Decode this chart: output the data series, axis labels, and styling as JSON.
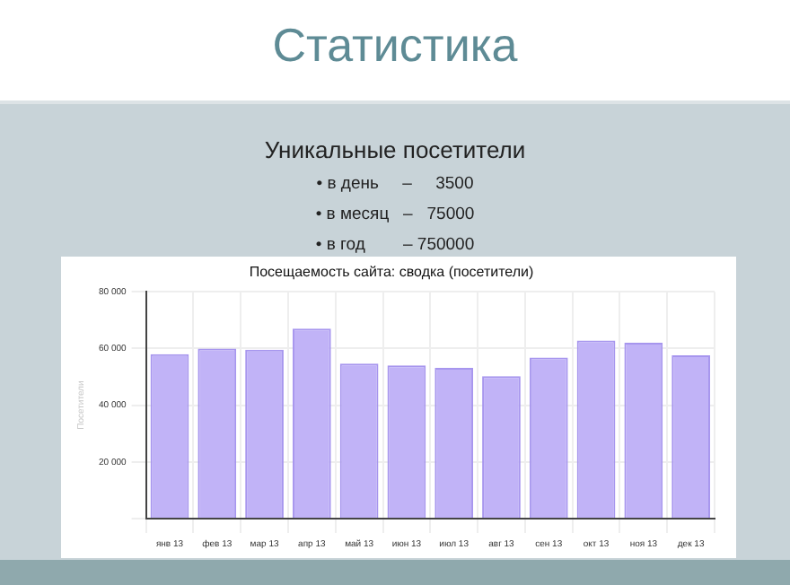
{
  "chart_data": {
    "type": "bar",
    "title": "Посещаемость сайта: сводка (посетители)",
    "ylabel": "Посетители",
    "annotations": [
      "Статистика",
      "Уникальные посетители",
      "• в день     –     3500",
      "• в месяц   –   75000",
      "• в год        – 750000"
    ],
    "categories": [
      "янв 13",
      "фев 13",
      "мар 13",
      "апр 13",
      "май 13",
      "июн 13",
      "июл 13",
      "авг 13",
      "сен 13",
      "окт 13",
      "ноя 13",
      "дек 13"
    ],
    "values": [
      58000,
      60000,
      59600,
      67000,
      54700,
      54000,
      53200,
      50200,
      56800,
      62800,
      62000,
      57600
    ],
    "color": "#c1b3f7",
    "ylim": [
      0,
      80000
    ],
    "yticks": [
      {
        "value": 0,
        "label": null
      },
      {
        "value": 20000,
        "label": "20 000"
      },
      {
        "value": 40000,
        "label": "40 000"
      },
      {
        "value": 60000,
        "label": "60 000"
      },
      {
        "value": 80000,
        "label": "80 000"
      }
    ],
    "grid": true,
    "legend": false
  }
}
